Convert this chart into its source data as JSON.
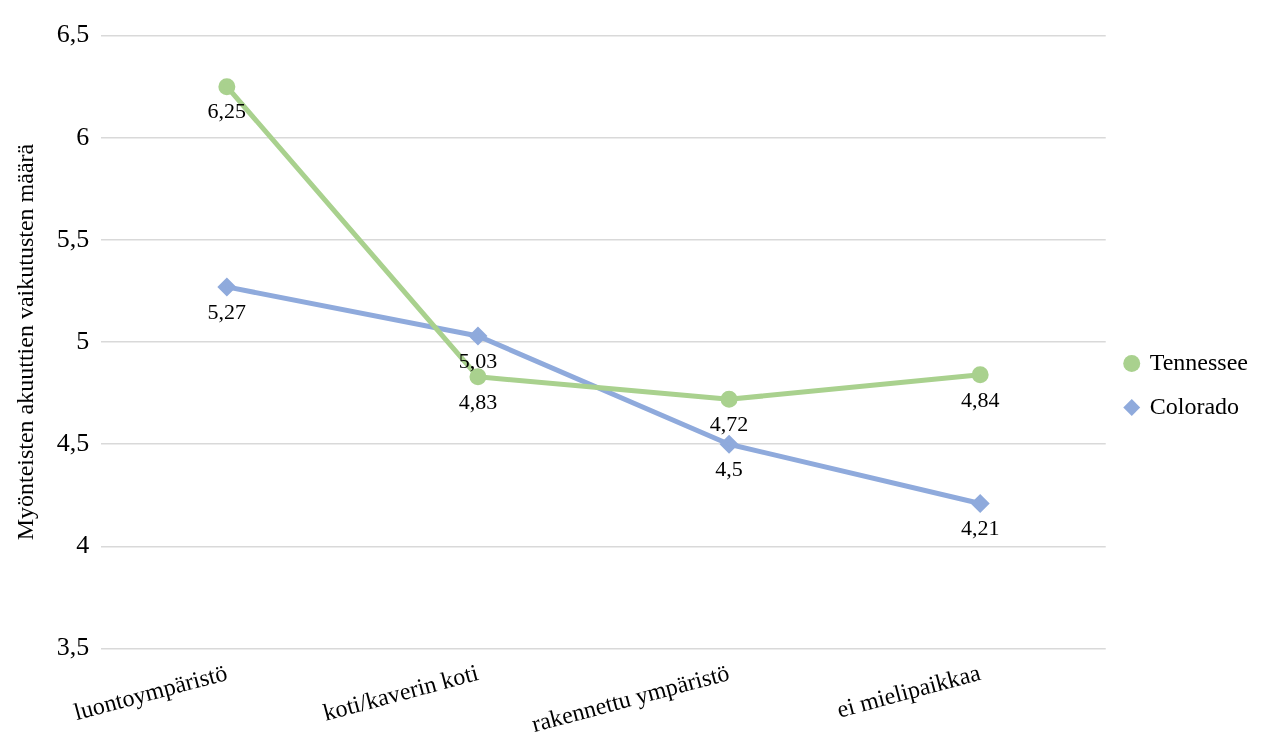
{
  "chart_data": {
    "type": "line",
    "ylabel": "Myönteisten akuuttien vaikutusten määrä",
    "categories": [
      "luontoympäristö",
      "koti/kaverin koti",
      "rakennettu ympäristö",
      "ei mielipaikkaa"
    ],
    "series": [
      {
        "name": "Tennessee",
        "color": "#a9d18e",
        "marker": "circle",
        "values": [
          6.25,
          4.83,
          4.72,
          4.84
        ],
        "value_labels": [
          "6,25",
          "4,83",
          "4,72",
          "4,84"
        ]
      },
      {
        "name": "Colorado",
        "color": "#8faadc",
        "marker": "diamond",
        "values": [
          5.27,
          5.03,
          4.5,
          4.21
        ],
        "value_labels": [
          "5,27",
          "5,03",
          "4,5",
          "4,21"
        ]
      }
    ],
    "ylim": [
      3.5,
      6.5
    ],
    "yticks": [
      {
        "value": 3.5,
        "label": "3,5"
      },
      4,
      {
        "value": 4.5,
        "label": "4,5"
      },
      5,
      {
        "value": 5.5,
        "label": "5,5"
      },
      6,
      {
        "value": 6.5,
        "label": "6,5"
      }
    ],
    "grid": "y",
    "legend": "right",
    "line_style": "solid"
  }
}
